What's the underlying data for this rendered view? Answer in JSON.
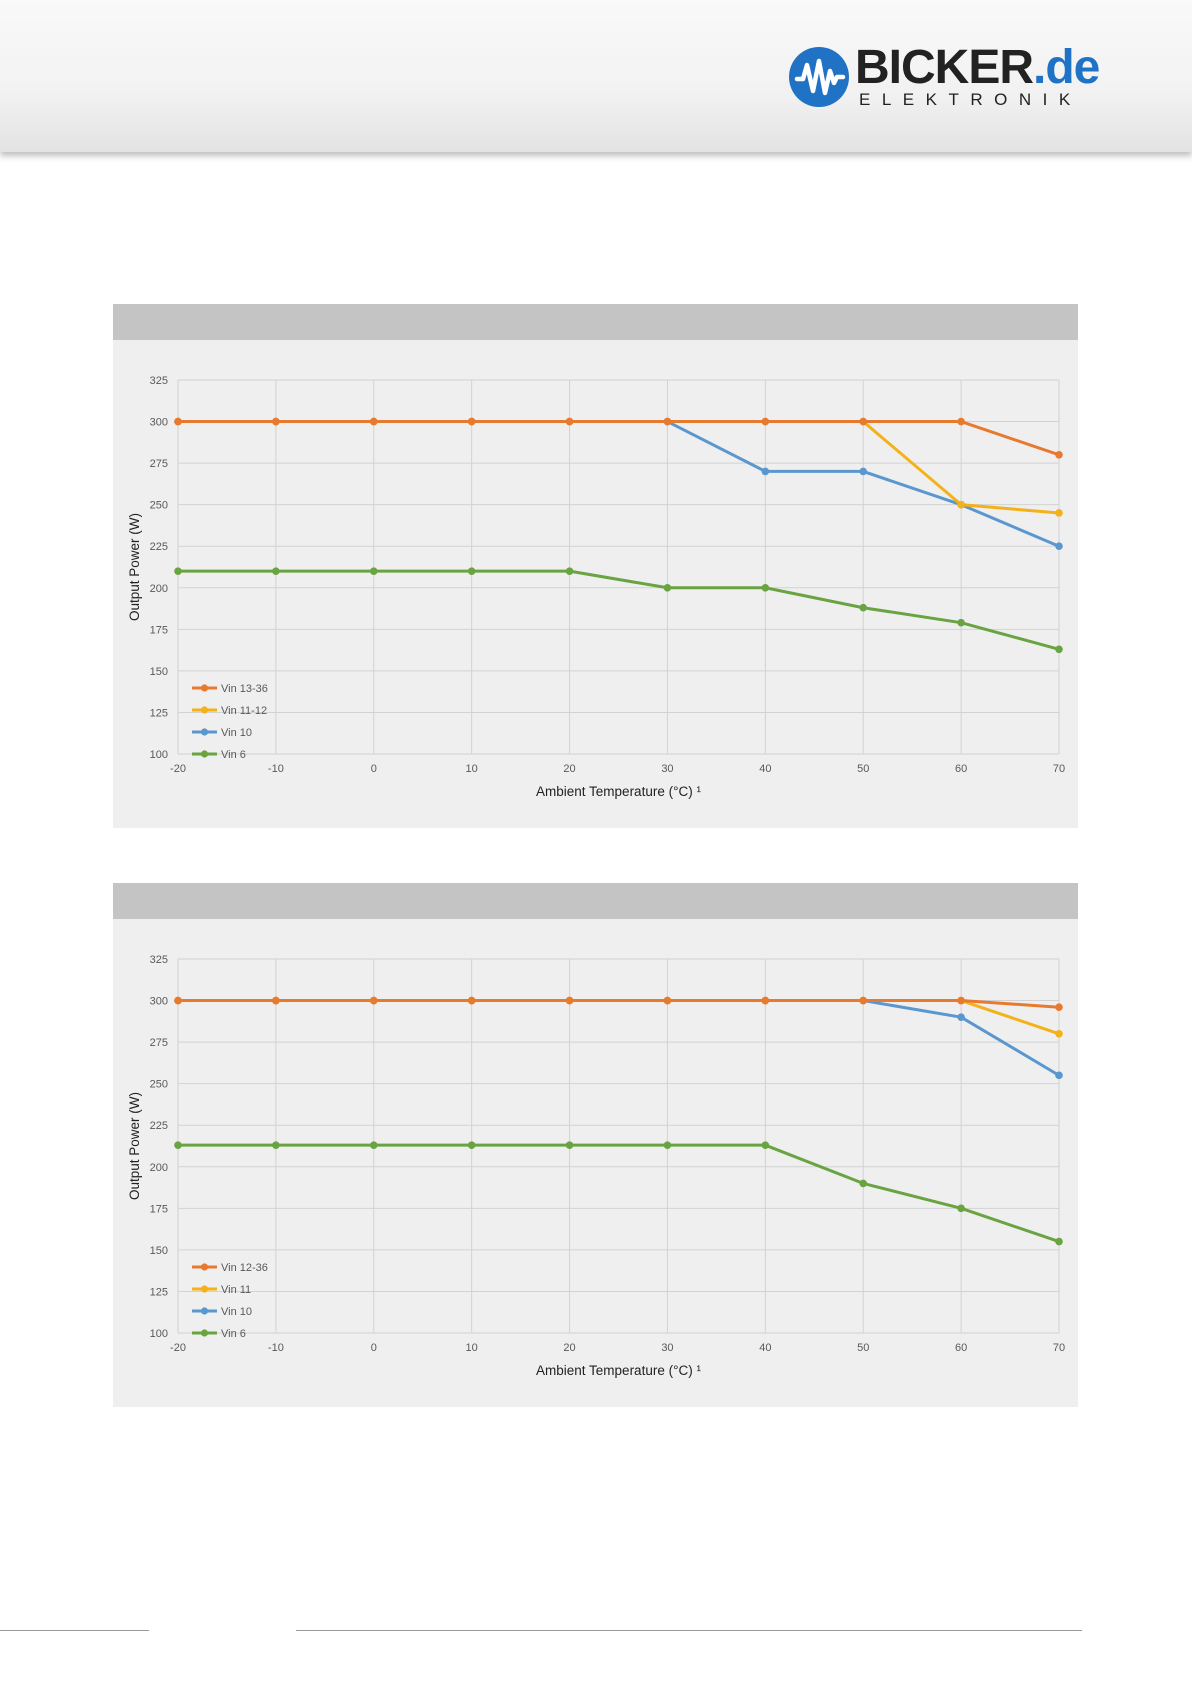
{
  "brand": {
    "logo_main": "BICKER",
    "logo_dot": ".",
    "logo_tld": "de",
    "logo_sub": "ELEKTRONIK",
    "color_blue": "#1f72c4"
  },
  "chart_data": [
    {
      "type": "line",
      "title": "",
      "xlabel": "Ambient Temperature (°C) ¹",
      "ylabel": "Output Power (W)",
      "x": [
        -20,
        -10,
        0,
        10,
        20,
        30,
        40,
        50,
        60,
        70
      ],
      "xlim": [
        -20,
        70
      ],
      "ylim": [
        100,
        325
      ],
      "yticks": [
        100,
        125,
        150,
        175,
        200,
        225,
        250,
        275,
        300,
        325
      ],
      "grid": true,
      "legend_position": "bottom-left",
      "series": [
        {
          "name": "Vin 13-36",
          "color": "#e87a30",
          "values": [
            300,
            300,
            300,
            300,
            300,
            300,
            300,
            300,
            300,
            280
          ]
        },
        {
          "name": "Vin 11-12",
          "color": "#f3b21a",
          "values": [
            300,
            300,
            300,
            300,
            300,
            300,
            300,
            300,
            250,
            245
          ]
        },
        {
          "name": "Vin 10",
          "color": "#5b97cf",
          "values": [
            300,
            300,
            300,
            300,
            300,
            300,
            270,
            270,
            250,
            225
          ]
        },
        {
          "name": "Vin 6",
          "color": "#6aa342",
          "values": [
            210,
            210,
            210,
            210,
            210,
            200,
            200,
            188,
            179,
            163
          ]
        }
      ]
    },
    {
      "type": "line",
      "title": "",
      "xlabel": "Ambient Temperature (°C) ¹",
      "ylabel": "Output Power (W)",
      "x": [
        -20,
        -10,
        0,
        10,
        20,
        30,
        40,
        50,
        60,
        70
      ],
      "xlim": [
        -20,
        70
      ],
      "ylim": [
        100,
        325
      ],
      "yticks": [
        100,
        125,
        150,
        175,
        200,
        225,
        250,
        275,
        300,
        325
      ],
      "grid": true,
      "legend_position": "bottom-left",
      "series": [
        {
          "name": "Vin 12-36",
          "color": "#e87a30",
          "values": [
            300,
            300,
            300,
            300,
            300,
            300,
            300,
            300,
            300,
            296
          ]
        },
        {
          "name": "Vin 11",
          "color": "#f3b21a",
          "values": [
            300,
            300,
            300,
            300,
            300,
            300,
            300,
            300,
            300,
            280
          ]
        },
        {
          "name": "Vin 10",
          "color": "#5b97cf",
          "values": [
            300,
            300,
            300,
            300,
            300,
            300,
            300,
            300,
            290,
            255
          ]
        },
        {
          "name": "Vin 6",
          "color": "#6aa342",
          "values": [
            213,
            213,
            213,
            213,
            213,
            213,
            213,
            190,
            175,
            155
          ]
        }
      ]
    }
  ]
}
